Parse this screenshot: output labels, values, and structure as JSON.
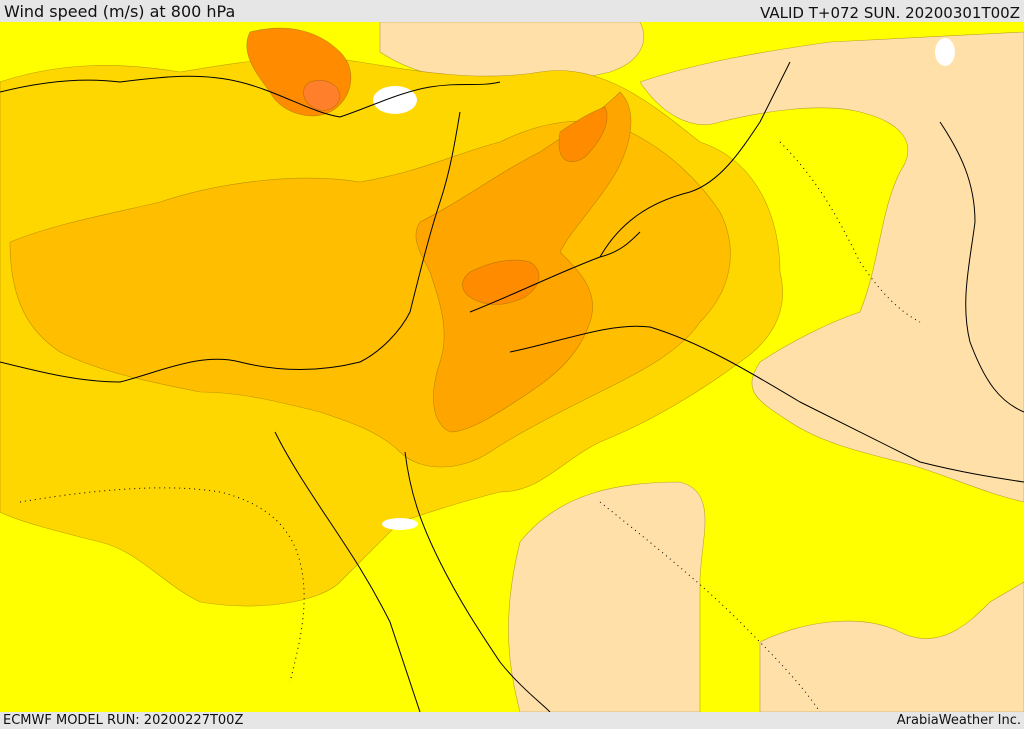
{
  "header": {
    "title": "Wind speed (m/s) at 800 hPa",
    "valid": "VALID T+072 SUN. 20200301T00Z"
  },
  "footer": {
    "model_run": "ECMWF MODEL RUN: 20200227T00Z",
    "credit": "ArabiaWeather Inc."
  },
  "map": {
    "colors": {
      "calm": "#ffffff",
      "light": "#ffe0a8",
      "yellow": "#ffff00",
      "gold": "#ffd700",
      "amber": "#ffbf00",
      "orange": "#ffa500",
      "dark_orange": "#ff8c00",
      "red_orange": "#ff7f2a",
      "border": "#000000"
    }
  }
}
